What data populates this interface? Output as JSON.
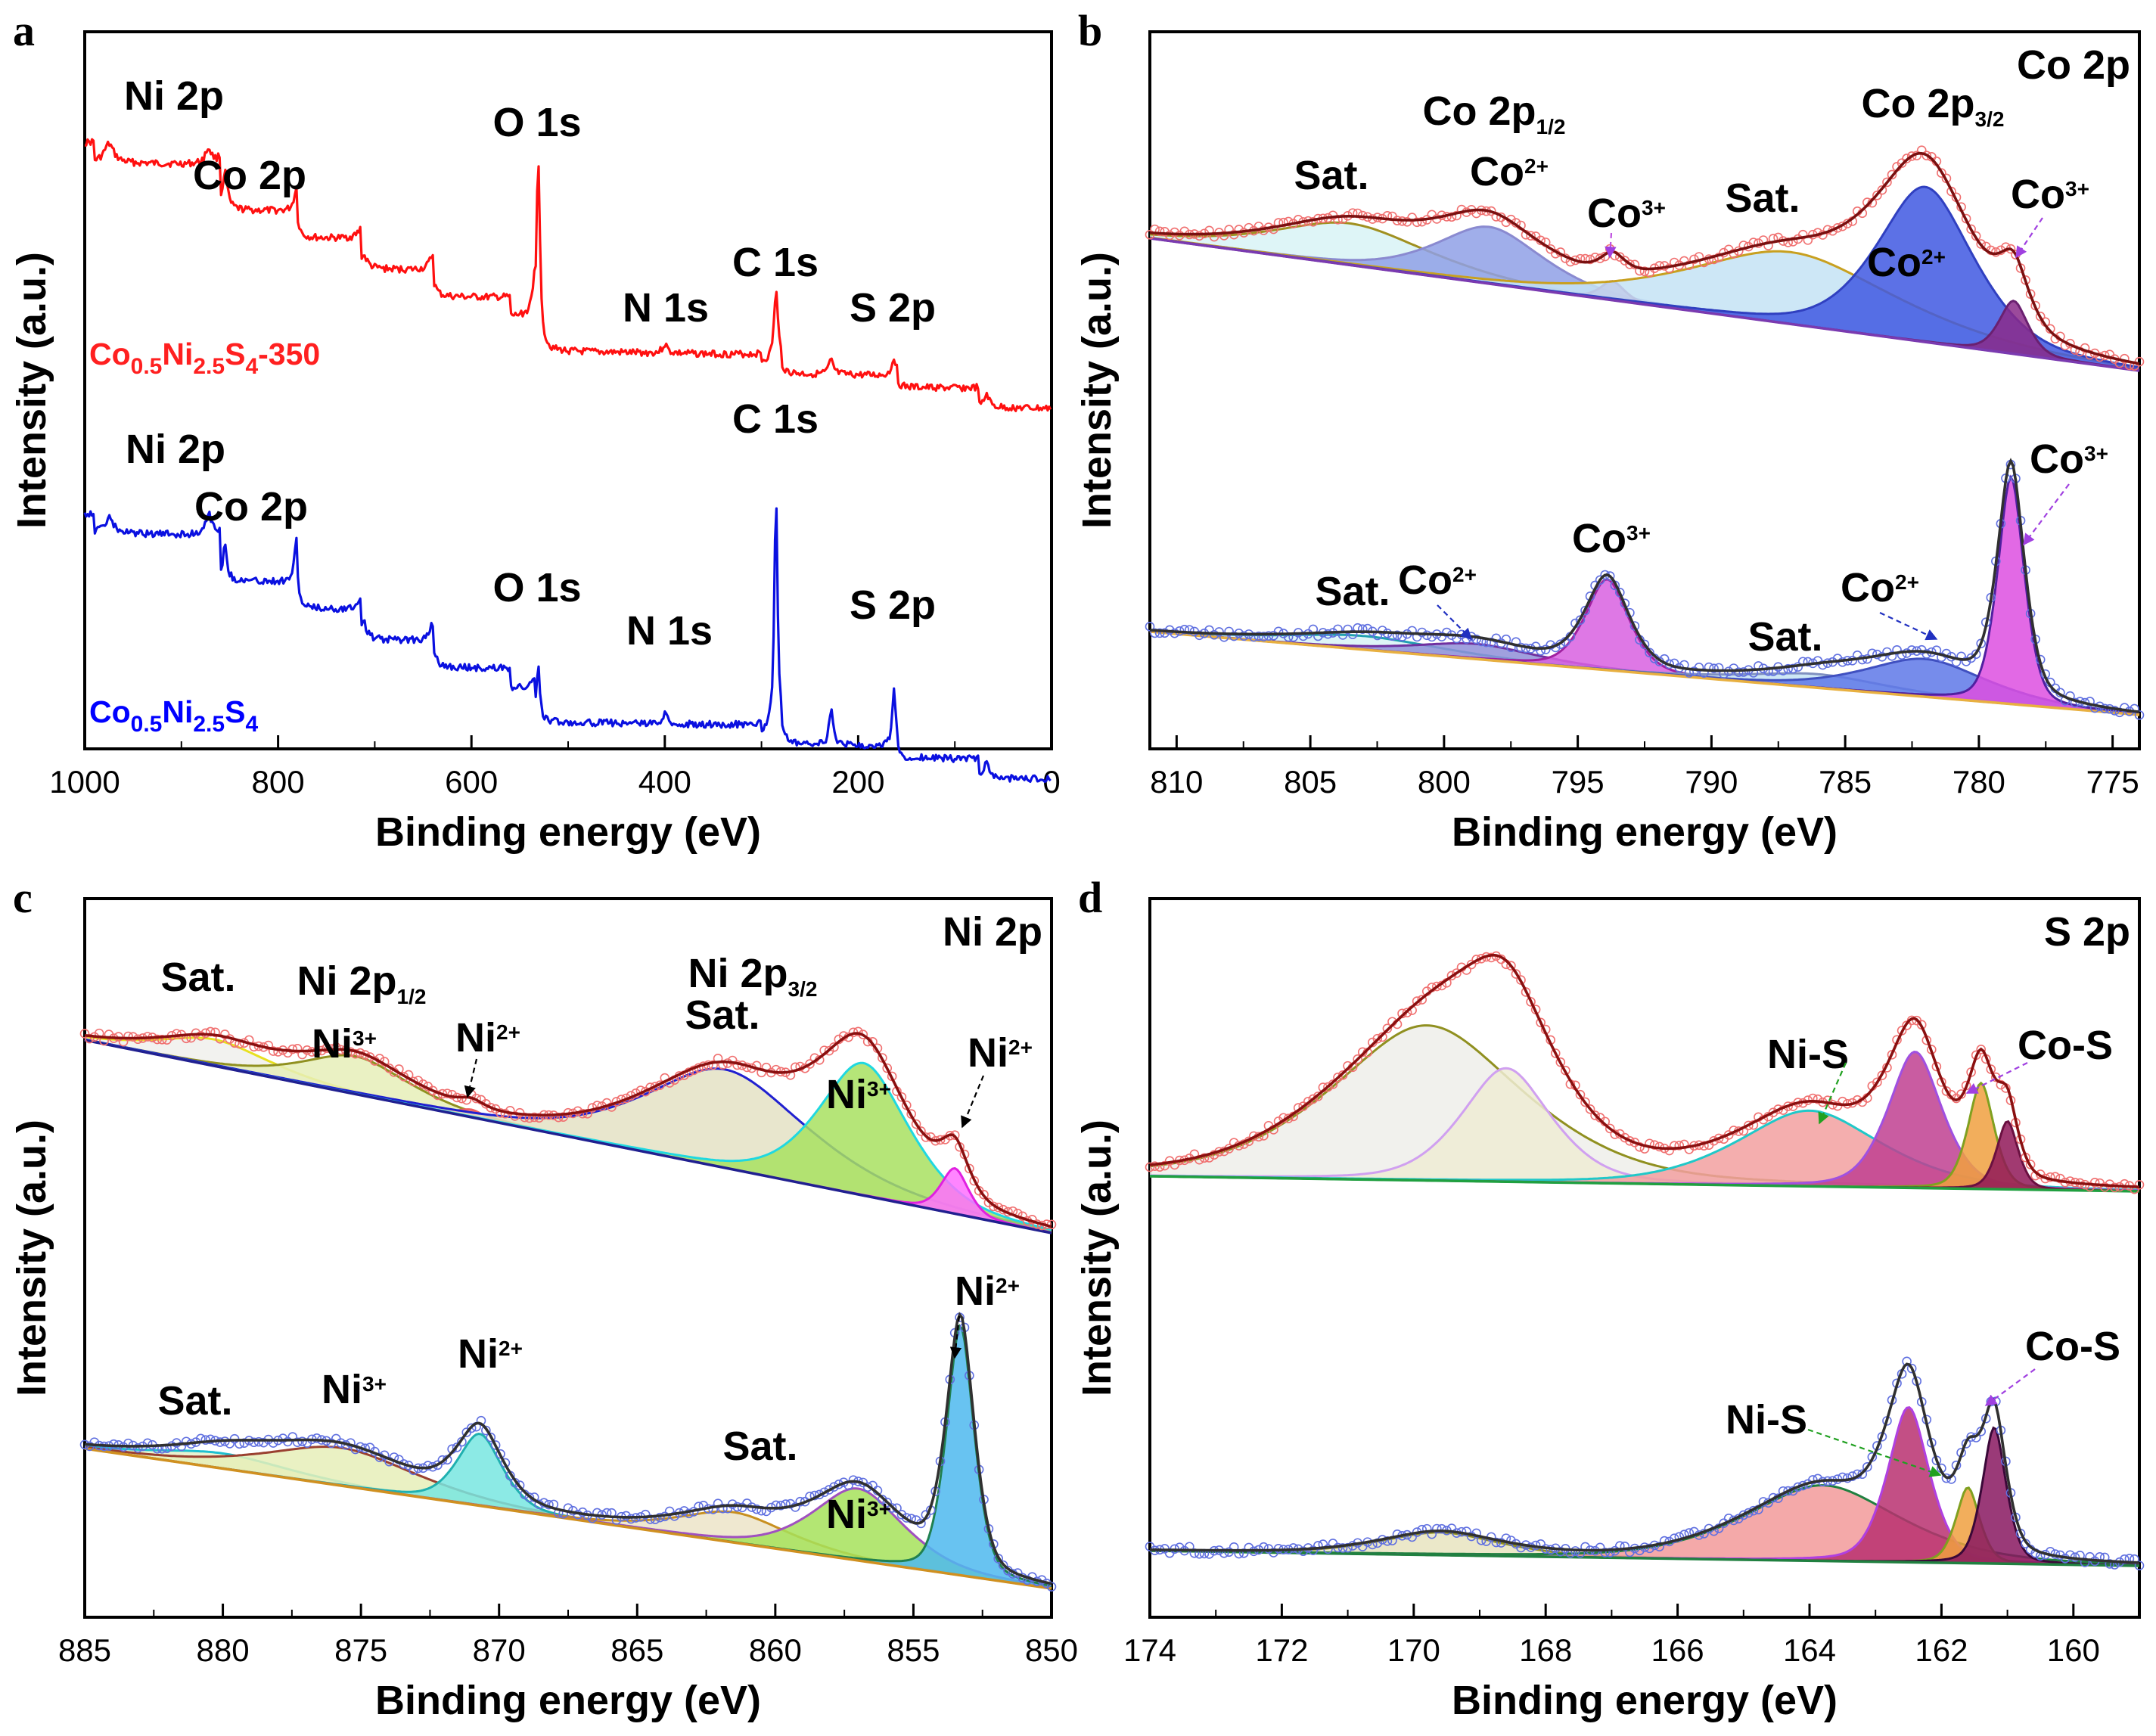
{
  "chart_data": [
    {
      "panel": "a",
      "type": "line",
      "title": "",
      "xlabel": "Binding energy (eV)",
      "ylabel": "Intensity (a.u.)",
      "xlim": [
        1000,
        0
      ],
      "xticks": [
        "1000",
        "800",
        "600",
        "400",
        "200",
        "0"
      ],
      "series": [
        {
          "name": "Co0.5Ni2.5S4-350",
          "color": "#ff0000",
          "labels": [
            {
              "text": "Ni 2p",
              "x": 860
            },
            {
              "text": "Co 2p",
              "x": 780
            },
            {
              "text": "O 1s",
              "x": 531
            },
            {
              "text": "N 1s",
              "x": 400
            },
            {
              "text": "C 1s",
              "x": 285
            },
            {
              "text": "S 2p",
              "x": 163
            }
          ]
        },
        {
          "name": "Co0.5Ni2.5S4",
          "color": "#0000ff",
          "labels": [
            {
              "text": "Ni 2p",
              "x": 855
            },
            {
              "text": "Co 2p",
              "x": 780
            },
            {
              "text": "O 1s",
              "x": 531
            },
            {
              "text": "N 1s",
              "x": 400
            },
            {
              "text": "C 1s",
              "x": 285
            },
            {
              "text": "S 2p",
              "x": 162
            }
          ]
        }
      ],
      "sample_labels": [
        {
          "base": "Co",
          "sub1": "0.5",
          "mid": "Ni",
          "sub2": "2.5",
          "s": "S",
          "sub3": "4",
          "suffix": "-350",
          "color": "#ff2020"
        },
        {
          "base": "Co",
          "sub1": "0.5",
          "mid": "Ni",
          "sub2": "2.5",
          "s": "S",
          "sub3": "4",
          "suffix": "",
          "color": "#0000ff"
        }
      ]
    },
    {
      "panel": "b",
      "type": "line",
      "title": "Co 2p",
      "xlabel": "Binding energy (eV)",
      "ylabel": "Intensity (a.u.)",
      "xlim": [
        811,
        774
      ],
      "xticks": [
        "810",
        "805",
        "800",
        "795",
        "790",
        "785",
        "780",
        "775"
      ],
      "series": [
        {
          "name": "Co0.5Ni2.5S4-350",
          "peaks": [
            {
              "label": "Sat.",
              "center": 803.5,
              "color": "#d8f3f6"
            },
            {
              "label": "Co2+",
              "center": 798.3,
              "color": "#8fa0e6"
            },
            {
              "label": "Co3+",
              "center": 793.7,
              "color": "#b050b0"
            },
            {
              "label": "Sat.",
              "center": 787.0,
              "color": "#c4e3f5"
            },
            {
              "label": "Co2+",
              "center": 782.0,
              "color": "#3f58e2"
            },
            {
              "label": "Co3+",
              "center": 778.7,
              "color": "#8a2a8a"
            }
          ]
        },
        {
          "name": "Co0.5Ni2.5S4",
          "peaks": [
            {
              "label": "Sat.",
              "center": 803.0,
              "color": "#d8f3f6"
            },
            {
              "label": "Co2+",
              "center": 798.8,
              "color": "#8f8fd8"
            },
            {
              "label": "Co3+",
              "center": 793.9,
              "color": "#d860e0"
            },
            {
              "label": "Sat.",
              "center": 786.0,
              "color": "#c4e3f5"
            },
            {
              "label": "Co2+",
              "center": 782.0,
              "color": "#5e78e8"
            },
            {
              "label": "Co3+",
              "center": 778.8,
              "color": "#dd4fe0"
            }
          ]
        }
      ],
      "annotations": [
        "Co 2p1/2",
        "Co 2p3/2"
      ]
    },
    {
      "panel": "c",
      "type": "line",
      "title": "Ni 2p",
      "xlabel": "Binding energy (eV)",
      "ylabel": "Intensity (a.u.)",
      "xlim": [
        885,
        850
      ],
      "xticks": [
        "885",
        "880",
        "875",
        "870",
        "865",
        "860",
        "855",
        "850"
      ],
      "series": [
        {
          "name": "Co0.5Ni2.5S4-350",
          "peaks": [
            {
              "label": "Sat.",
              "center": 880.3,
              "color": "#f0f0ec"
            },
            {
              "label": "Ni3+",
              "center": 875.2,
              "color": "#e6efb8"
            },
            {
              "label": "Ni2+",
              "center": 871.0,
              "color": "#ff9a9a"
            },
            {
              "label": "Sat.",
              "center": 861.8,
              "color": "#e4e2c4"
            },
            {
              "label": "Ni3+",
              "center": 856.8,
              "color": "#a8e060"
            },
            {
              "label": "Ni2+",
              "center": 853.5,
              "color": "#ff70ff"
            }
          ]
        },
        {
          "name": "Co0.5Ni2.5S4",
          "peaks": [
            {
              "label": "Sat.",
              "center": 880.0,
              "color": "#e4f0c8"
            },
            {
              "label": "Ni3+",
              "center": 875.7,
              "color": "#e6efb8"
            },
            {
              "label": "Ni2+",
              "center": 870.7,
              "color": "#78e6e0"
            },
            {
              "label": "Sat.",
              "center": 861.5,
              "color": "#ece4c8"
            },
            {
              "label": "Ni3+",
              "center": 857.0,
              "color": "#a6e25a"
            },
            {
              "label": "Ni2+",
              "center": 853.3,
              "color": "#4eb8ee"
            }
          ]
        }
      ],
      "annotations": [
        "Ni 2p1/2",
        "Ni 2p3/2"
      ]
    },
    {
      "panel": "d",
      "type": "line",
      "title": "S 2p",
      "xlabel": "Binding energy (eV)",
      "ylabel": "Intensity (a.u.)",
      "xlim": [
        174,
        159
      ],
      "xticks": [
        "174",
        "172",
        "170",
        "168",
        "166",
        "164",
        "162",
        "160"
      ],
      "series": [
        {
          "name": "Co0.5Ni2.5S4-350",
          "peaks": [
            {
              "label": "",
              "center": 169.8,
              "color": "#eeeeea"
            },
            {
              "label": "",
              "center": 168.6,
              "color": "#eeecd4"
            },
            {
              "label": "Ni-S",
              "center": 164.0,
              "color": "#f2a0a0"
            },
            {
              "label": "Ni-S",
              "center": 162.4,
              "color": "#c04090"
            },
            {
              "label": "Co-S",
              "center": 161.4,
              "color": "#f0a040"
            },
            {
              "label": "Co-S",
              "center": 161.0,
              "color": "#901858"
            }
          ]
        },
        {
          "name": "Co0.5Ni2.5S4",
          "peaks": [
            {
              "label": "",
              "center": 169.6,
              "color": "#e8e4c0"
            },
            {
              "label": "Ni-S",
              "center": 163.8,
              "color": "#f29a9a"
            },
            {
              "label": "Ni-S",
              "center": 162.5,
              "color": "#b83070"
            },
            {
              "label": "Co-S",
              "center": 161.6,
              "color": "#f0a040"
            },
            {
              "label": "Co-S",
              "center": 161.2,
              "color": "#881860"
            }
          ]
        }
      ]
    }
  ]
}
